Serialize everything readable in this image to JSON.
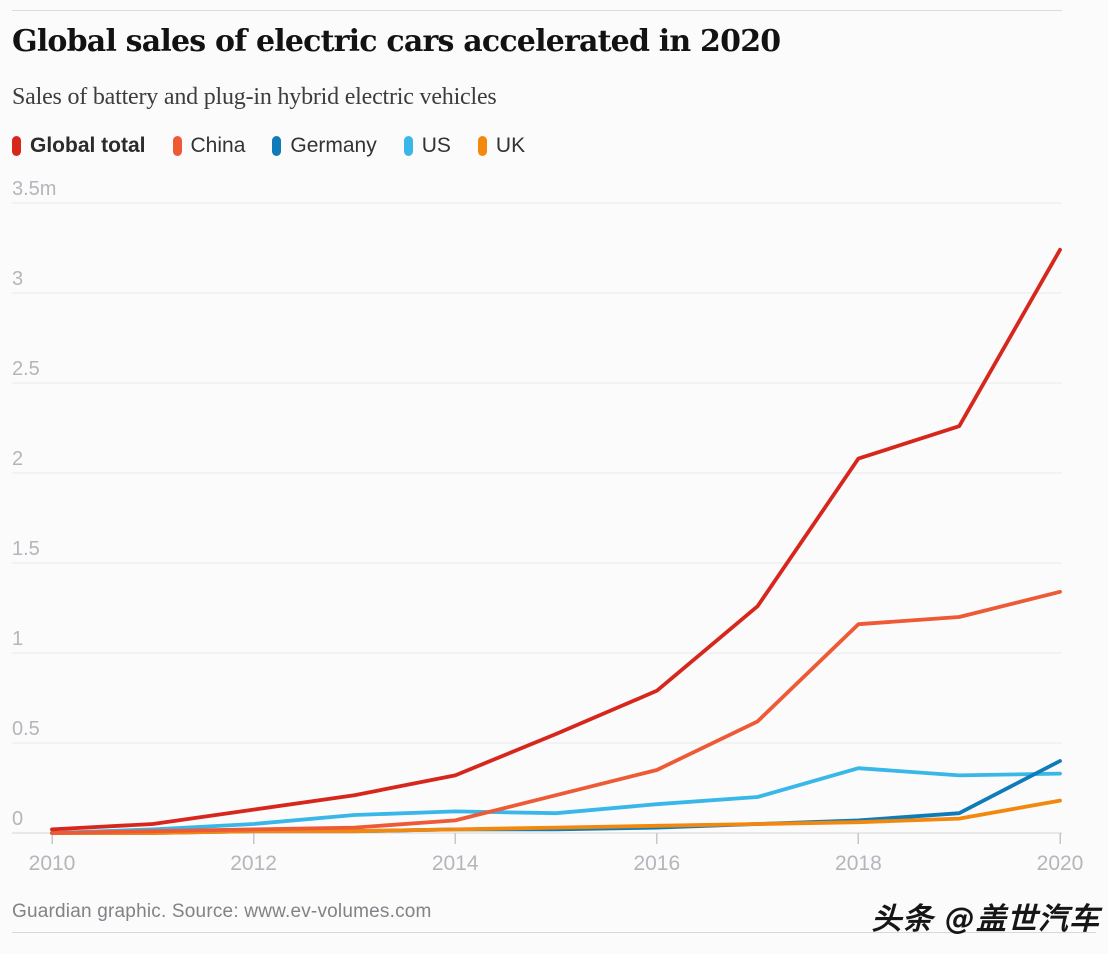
{
  "header": {
    "title": "Global sales of electric cars accelerated in 2020",
    "subtitle": "Sales of battery and plug-in hybrid electric vehicles"
  },
  "legend": {
    "items": [
      {
        "label": "Global total",
        "color": "#d7271d",
        "bold": true
      },
      {
        "label": "China",
        "color": "#ed5a35",
        "bold": false
      },
      {
        "label": "Germany",
        "color": "#0f7cb9",
        "bold": false
      },
      {
        "label": "US",
        "color": "#39b7e9",
        "bold": false
      },
      {
        "label": "UK",
        "color": "#f2880e",
        "bold": false
      }
    ]
  },
  "chart_data": {
    "type": "line",
    "title": "Global sales of electric cars accelerated in 2020",
    "subtitle": "Sales of battery and plug-in hybrid electric vehicles",
    "unit": "million vehicles",
    "x": [
      2010,
      2011,
      2012,
      2013,
      2014,
      2015,
      2016,
      2017,
      2018,
      2019,
      2020
    ],
    "series": [
      {
        "name": "Global total",
        "color": "#d7271d",
        "values": [
          0.02,
          0.05,
          0.13,
          0.21,
          0.32,
          0.55,
          0.79,
          1.26,
          2.08,
          2.26,
          3.24
        ]
      },
      {
        "name": "China",
        "color": "#ed5a35",
        "values": [
          0.0,
          0.01,
          0.02,
          0.03,
          0.07,
          0.21,
          0.35,
          0.62,
          1.16,
          1.2,
          1.34
        ]
      },
      {
        "name": "Germany",
        "color": "#0f7cb9",
        "values": [
          0.0,
          0.0,
          0.01,
          0.01,
          0.02,
          0.02,
          0.03,
          0.05,
          0.07,
          0.11,
          0.4
        ]
      },
      {
        "name": "US",
        "color": "#39b7e9",
        "values": [
          0.0,
          0.02,
          0.05,
          0.1,
          0.12,
          0.11,
          0.16,
          0.2,
          0.36,
          0.32,
          0.33
        ]
      },
      {
        "name": "UK",
        "color": "#f2880e",
        "values": [
          0.0,
          0.0,
          0.01,
          0.01,
          0.02,
          0.03,
          0.04,
          0.05,
          0.06,
          0.08,
          0.18
        ]
      }
    ],
    "z_order": [
      "US",
      "Germany",
      "UK",
      "China",
      "Global total"
    ],
    "y_ticks": [
      {
        "value": 3.5,
        "label": "3.5m"
      },
      {
        "value": 3,
        "label": "3"
      },
      {
        "value": 2.5,
        "label": "2.5"
      },
      {
        "value": 2,
        "label": "2"
      },
      {
        "value": 1.5,
        "label": "1.5"
      },
      {
        "value": 1,
        "label": "1"
      },
      {
        "value": 0.5,
        "label": "0.5"
      },
      {
        "value": 0,
        "label": "0"
      }
    ],
    "x_ticks": [
      {
        "value": 2010,
        "label": "2010"
      },
      {
        "value": 2012,
        "label": "2012"
      },
      {
        "value": 2014,
        "label": "2014"
      },
      {
        "value": 2016,
        "label": "2016"
      },
      {
        "value": 2018,
        "label": "2018"
      },
      {
        "value": 2020,
        "label": "2020"
      }
    ],
    "xlim": [
      2010,
      2020
    ],
    "ylim": [
      0,
      3.5
    ],
    "grid": "horizontal",
    "legend_position": "top"
  },
  "footer": {
    "credit": "Guardian graphic. Source: www.ev-volumes.com"
  },
  "watermark": {
    "text": "头条 @盖世汽车"
  }
}
